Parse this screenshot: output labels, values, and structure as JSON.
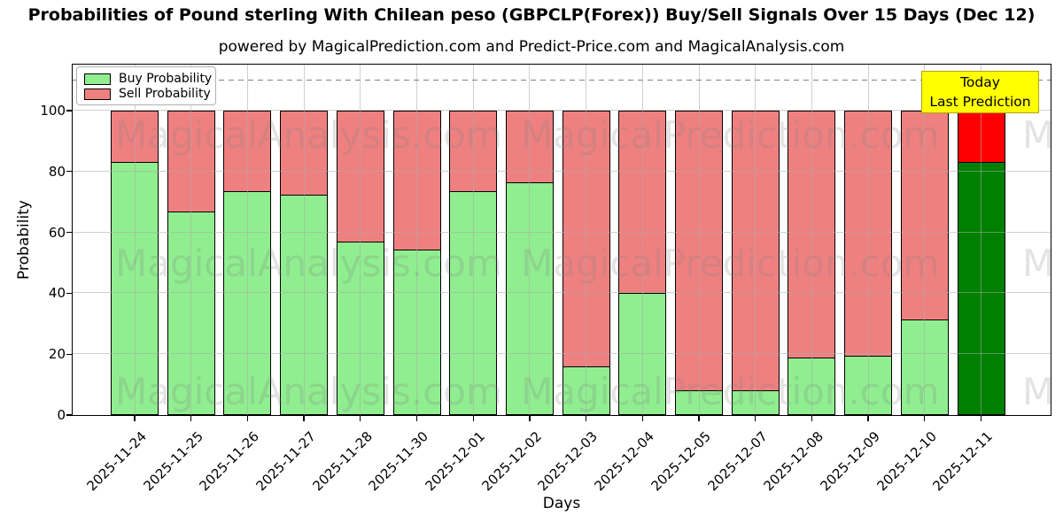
{
  "title": "Probabilities of Pound sterling With Chilean peso (GBPCLP(Forex)) Buy/Sell Signals Over 15 Days (Dec 12)",
  "subtitle": "powered by MagicalPrediction.com and Predict-Price.com and MagicalAnalysis.com",
  "legend": {
    "buy_label": "Buy Probability",
    "sell_label": "Sell Probability"
  },
  "annotation": {
    "line1": "Today",
    "line2": "Last Prediction"
  },
  "axes": {
    "xlabel": "Days",
    "ylabel": "Probability",
    "yticks": [
      0,
      20,
      40,
      60,
      80,
      100
    ]
  },
  "watermarks": [
    "MagicalAnalysis.com",
    "MagicalPrediction.com"
  ],
  "colors": {
    "buy": "#90ee90",
    "sell": "#ef8080",
    "today_buy": "#008000",
    "today_sell": "#ff0000",
    "bar_edge": "#000000",
    "grid": "#c0c0c0",
    "dashed_line": "#808080",
    "annotation_bg": "#ffff00",
    "annotation_border": "#b3a300",
    "watermark": "rgba(128,128,128,0.22)"
  },
  "chart_data": {
    "type": "bar",
    "stacked": true,
    "title": "Probabilities of Pound sterling With Chilean peso (GBPCLP(Forex)) Buy/Sell Signals Over 15 Days (Dec 12)",
    "xlabel": "Days",
    "ylabel": "Probability",
    "categories": [
      "2025-11-24",
      "2025-11-25",
      "2025-11-26",
      "2025-11-27",
      "2025-11-28",
      "2025-11-30",
      "2025-12-01",
      "2025-12-02",
      "2025-12-03",
      "2025-12-04",
      "2025-12-05",
      "2025-12-07",
      "2025-12-08",
      "2025-12-09",
      "2025-12-10",
      "2025-12-11"
    ],
    "series": [
      {
        "name": "Buy Probability",
        "values": [
          83,
          67,
          73.5,
          72.5,
          57,
          54.5,
          73.5,
          76.5,
          16,
          40,
          8,
          8,
          19,
          19.5,
          31.5,
          83
        ]
      },
      {
        "name": "Sell Probability",
        "values": [
          17,
          33,
          26.5,
          27.5,
          43,
          45.5,
          26.5,
          23.5,
          84,
          60,
          92,
          92,
          81,
          80.5,
          68.5,
          17
        ]
      }
    ],
    "today_index": 15,
    "ylim": [
      0,
      115
    ],
    "dashed_line_y": 110,
    "grid": true,
    "legend_position": "upper left"
  }
}
